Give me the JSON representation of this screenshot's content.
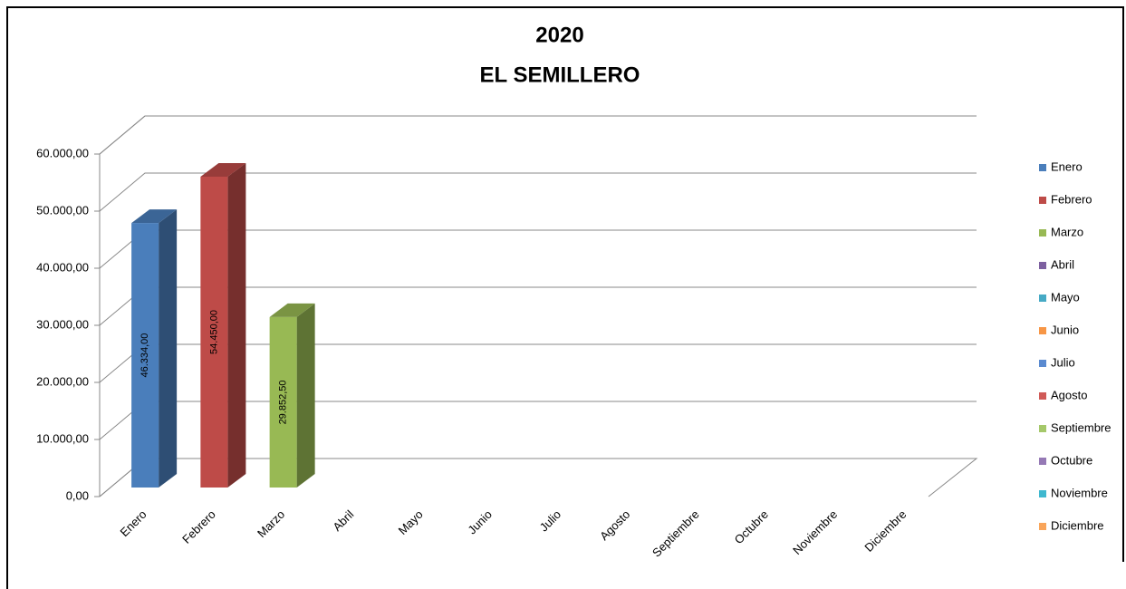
{
  "chart_data": {
    "type": "bar3d",
    "title": "2020",
    "subtitle": "EL SEMILLERO",
    "categories": [
      "Enero",
      "Febrero",
      "Marzo",
      "Abril",
      "Mayo",
      "Junio",
      "Julio",
      "Agosto",
      "Septiembre",
      "Octubre",
      "Noviembre",
      "Diciembre"
    ],
    "values": [
      46334,
      54450,
      29852.5,
      null,
      null,
      null,
      null,
      null,
      null,
      null,
      null,
      null
    ],
    "value_labels": [
      "46.334,00",
      "54.450,00",
      "29.852,50",
      null,
      null,
      null,
      null,
      null,
      null,
      null,
      null,
      null
    ],
    "colors": [
      "#4a7ebb",
      "#be4b48",
      "#98b954",
      "#7d60a0",
      "#46aac5",
      "#f79646",
      "#5a8ad0",
      "#d05a57",
      "#a5c86a",
      "#9579b5",
      "#3fb8cf",
      "#f9a55a"
    ],
    "ylim": [
      0,
      60000
    ],
    "yticks": [
      {
        "value": 0,
        "label": "0,00"
      },
      {
        "value": 10000,
        "label": "10.000,00"
      },
      {
        "value": 20000,
        "label": "20.000,00"
      },
      {
        "value": 30000,
        "label": "30.000,00"
      },
      {
        "value": 40000,
        "label": "40.000,00"
      },
      {
        "value": 50000,
        "label": "50.000,00"
      },
      {
        "value": 60000,
        "label": "60.000,00"
      }
    ],
    "grid": true,
    "legend": "right"
  }
}
